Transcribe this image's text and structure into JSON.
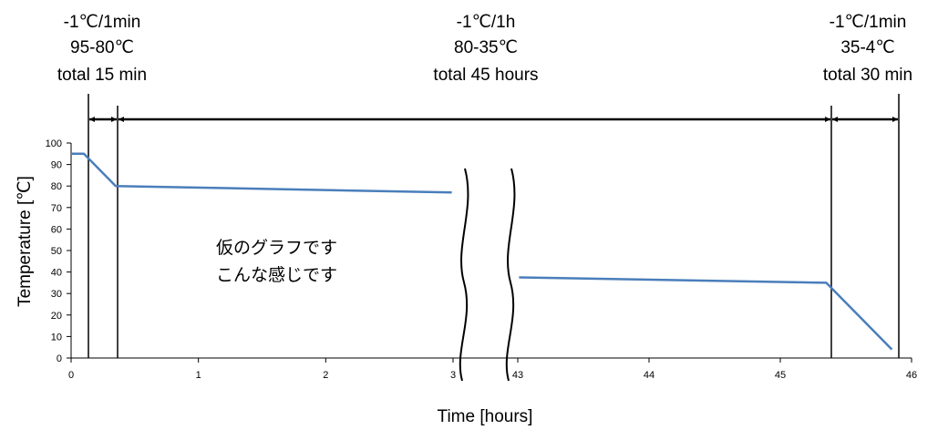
{
  "chart_data": {
    "type": "line",
    "title": "",
    "xlabel": "Time [hours]",
    "ylabel": "Temperature [℃]",
    "ylim": [
      0,
      100
    ],
    "yticks": [
      "0",
      "10",
      "20",
      "30",
      "40",
      "50",
      "60",
      "70",
      "80",
      "90",
      "100"
    ],
    "axis_break": true,
    "x_segments": [
      {
        "range": [
          0,
          3
        ],
        "ticks": [
          "0",
          "1",
          "2",
          "3"
        ]
      },
      {
        "range": [
          43,
          46
        ],
        "ticks": [
          "43",
          "44",
          "45",
          "46"
        ]
      }
    ],
    "series": [
      {
        "segment": 0,
        "x": [
          0,
          0.1,
          0.35,
          2.99
        ],
        "y": [
          95,
          95,
          80,
          77
        ],
        "color": "#4a7ebb"
      },
      {
        "segment": 1,
        "x": [
          43.01,
          45.35,
          45.85
        ],
        "y": [
          37.5,
          35,
          4
        ],
        "color": "#4a7ebb"
      }
    ],
    "phases": [
      {
        "rate": "-1℃/1min",
        "range": "95-80℃",
        "total": "total 15 min"
      },
      {
        "rate": "-1℃/1h",
        "range": "80-35℃",
        "total": "total 45 hours"
      },
      {
        "rate": "-1℃/1min",
        "range": "35-4℃",
        "total": "total 30 min"
      }
    ],
    "annotation": [
      "仮のグラフです",
      "こんな感じです"
    ]
  }
}
